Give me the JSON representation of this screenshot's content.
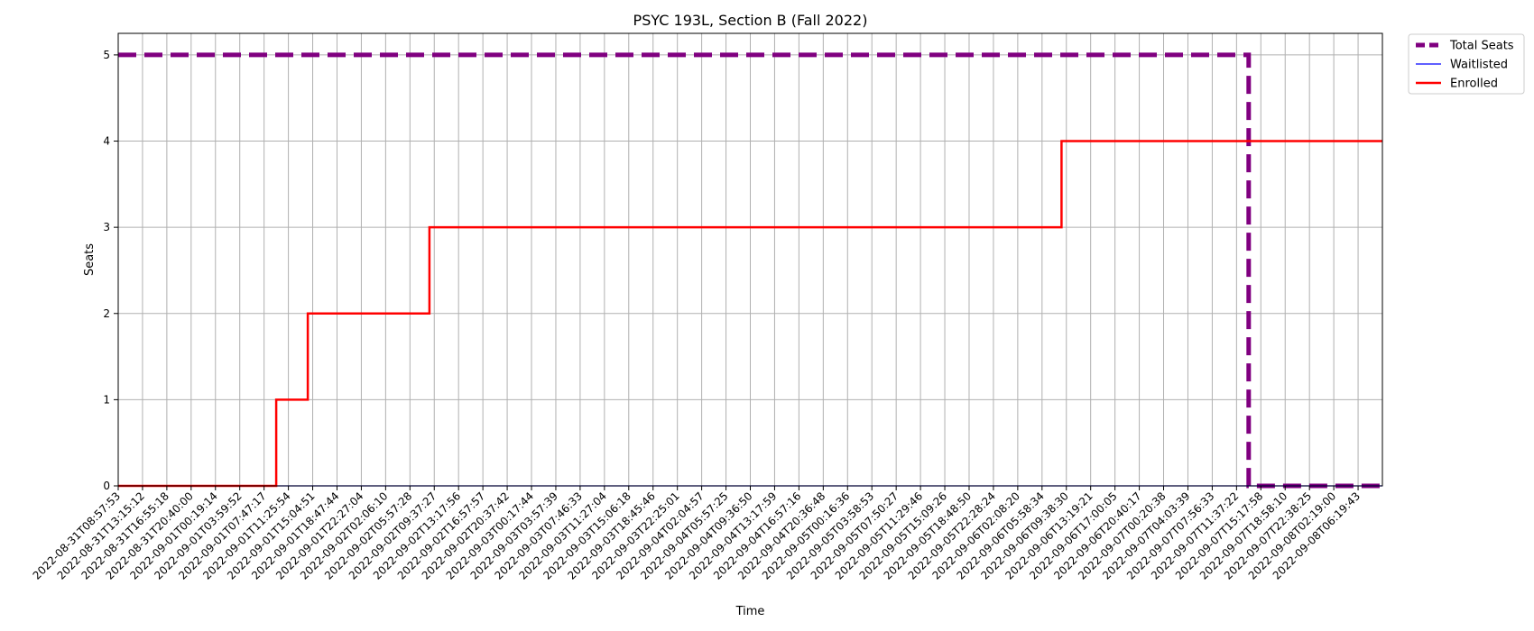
{
  "chart_data": {
    "type": "line",
    "title": "PSYC 193L, Section B (Fall 2022)",
    "xlabel": "Time",
    "ylabel": "Seats",
    "ylim": [
      0,
      5.25
    ],
    "yticks": [
      0,
      1,
      2,
      3,
      4,
      5
    ],
    "grid": true,
    "legend_placement": "outside top-right",
    "categories": [
      "2022-08-31T08:57:53",
      "2022-08-31T13:15:12",
      "2022-08-31T16:55:18",
      "2022-08-31T20:40:00",
      "2022-09-01T00:19:14",
      "2022-09-01T03:59:52",
      "2022-09-01T07:47:17",
      "2022-09-01T11:25:54",
      "2022-09-01T15:04:51",
      "2022-09-01T18:47:44",
      "2022-09-01T22:27:04",
      "2022-09-02T02:06:10",
      "2022-09-02T05:57:28",
      "2022-09-02T09:37:27",
      "2022-09-02T13:17:56",
      "2022-09-02T16:57:57",
      "2022-09-02T20:37:42",
      "2022-09-03T00:17:44",
      "2022-09-03T03:57:39",
      "2022-09-03T07:46:33",
      "2022-09-03T11:27:04",
      "2022-09-03T15:06:18",
      "2022-09-03T18:45:46",
      "2022-09-03T22:25:01",
      "2022-09-04T02:04:57",
      "2022-09-04T05:57:25",
      "2022-09-04T09:36:50",
      "2022-09-04T13:17:59",
      "2022-09-04T16:57:16",
      "2022-09-04T20:36:48",
      "2022-09-05T00:16:36",
      "2022-09-05T03:58:53",
      "2022-09-05T07:50:27",
      "2022-09-05T11:29:46",
      "2022-09-05T15:09:26",
      "2022-09-05T18:48:50",
      "2022-09-05T22:28:24",
      "2022-09-06T02:08:20",
      "2022-09-06T05:58:34",
      "2022-09-06T09:38:30",
      "2022-09-06T13:19:21",
      "2022-09-06T17:00:05",
      "2022-09-06T20:40:17",
      "2022-09-07T00:20:38",
      "2022-09-07T04:03:39",
      "2022-09-07T07:56:33",
      "2022-09-07T11:37:22",
      "2022-09-07T15:17:58",
      "2022-09-07T18:58:10",
      "2022-09-07T22:38:25",
      "2022-09-08T02:19:00",
      "2022-09-08T06:19:43"
    ],
    "series": [
      {
        "name": "Total Seats",
        "color": "#800080",
        "style": "dashed",
        "points": [
          [
            0,
            5
          ],
          [
            46.5,
            5
          ],
          [
            46.5,
            0
          ],
          [
            52,
            0
          ]
        ]
      },
      {
        "name": "Waitlisted",
        "color": "#0000ff",
        "style": "solid",
        "points": [
          [
            0,
            0
          ],
          [
            52,
            0
          ]
        ]
      },
      {
        "name": "Enrolled",
        "color": "#ff0000",
        "style": "solid",
        "points": [
          [
            0,
            0
          ],
          [
            6.5,
            0
          ],
          [
            6.5,
            1
          ],
          [
            7.8,
            1
          ],
          [
            7.8,
            2
          ],
          [
            12.8,
            2
          ],
          [
            12.8,
            3
          ],
          [
            38.8,
            3
          ],
          [
            38.8,
            4
          ],
          [
            52,
            4
          ]
        ]
      }
    ]
  }
}
